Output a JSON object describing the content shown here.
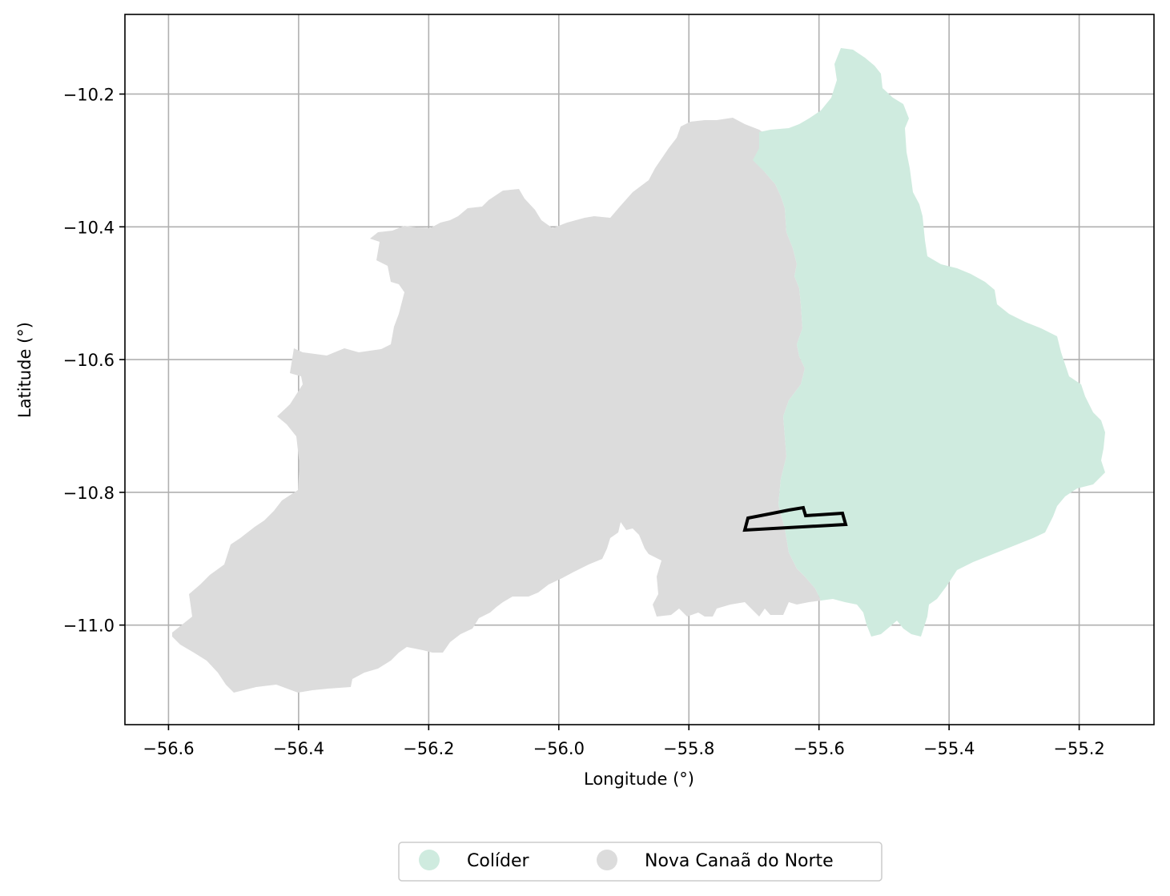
{
  "map": {
    "xlabel": "Longitude (°)",
    "ylabel": "Latitude (°)",
    "xlim": [
      -56.667,
      -55.085
    ],
    "ylim": [
      -11.15,
      -10.08
    ],
    "grid": true,
    "x_ticks": [
      "−56.6",
      "−56.4",
      "−56.2",
      "−56.0",
      "−55.8",
      "−55.6",
      "−55.4",
      "−55.2"
    ],
    "x_tick_values": [
      -56.6,
      -56.4,
      -56.2,
      -56.0,
      -55.8,
      -55.6,
      -55.4,
      -55.2
    ],
    "y_ticks": [
      "−10.2",
      "−10.4",
      "−10.6",
      "−10.8",
      "−11.0"
    ],
    "y_tick_values": [
      -10.2,
      -10.4,
      -10.6,
      -10.8,
      -11.0
    ],
    "colors": {
      "colider": "#cfebdf",
      "nova_canaa": "#dcdcdc",
      "grid": "#b0b0b0",
      "outline": "#000000"
    }
  },
  "legend": {
    "placement": "bottom-center",
    "items": [
      {
        "label": "Colíder",
        "color": "#cfebdf"
      },
      {
        "label": "Nova Canaã do Norte",
        "color": "#dcdcdc"
      }
    ]
  }
}
